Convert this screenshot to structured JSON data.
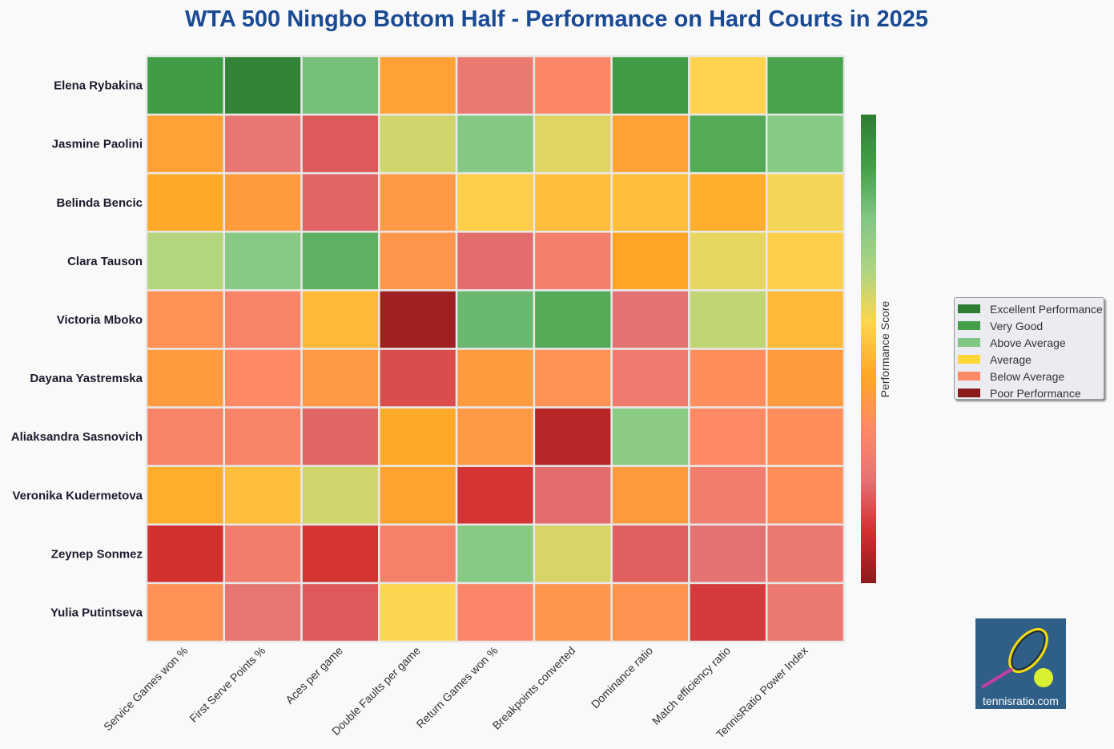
{
  "chart_data": {
    "type": "heatmap",
    "title": "WTA 500 Ningbo Bottom Half - Performance on Hard Courts in 2025",
    "rows": [
      "Elena Rybakina",
      "Jasmine Paolini",
      "Belinda Bencic",
      "Clara Tauson",
      "Victoria Mboko",
      "Dayana Yastremska",
      "Aliaksandra Sasnovich",
      "Veronika Kudermetova",
      "Zeynep Sonmez",
      "Yulia Putintseva"
    ],
    "columns": [
      "Service Games won %",
      "First Serve Points %",
      "Aces per game",
      "Double Faults per game",
      "Return Games won %",
      "Breakpoints converted",
      "Dominance ratio",
      "Match efficiency ratio",
      "TennisRatio Power Index"
    ],
    "values": [
      [
        0.9,
        0.98,
        0.8,
        0.42,
        0.25,
        0.32,
        0.9,
        0.55,
        0.88
      ],
      [
        0.42,
        0.24,
        0.18,
        0.62,
        0.77,
        0.6,
        0.42,
        0.86,
        0.76
      ],
      [
        0.45,
        0.4,
        0.2,
        0.39,
        0.54,
        0.5,
        0.5,
        0.46,
        0.57
      ],
      [
        0.66,
        0.76,
        0.84,
        0.38,
        0.21,
        0.28,
        0.44,
        0.59,
        0.54
      ],
      [
        0.36,
        0.3,
        0.49,
        0.03,
        0.82,
        0.86,
        0.22,
        0.64,
        0.49
      ],
      [
        0.4,
        0.33,
        0.39,
        0.16,
        0.4,
        0.36,
        0.26,
        0.35,
        0.4
      ],
      [
        0.3,
        0.3,
        0.2,
        0.45,
        0.39,
        0.07,
        0.75,
        0.33,
        0.35
      ],
      [
        0.46,
        0.5,
        0.62,
        0.43,
        0.12,
        0.21,
        0.4,
        0.27,
        0.35
      ],
      [
        0.11,
        0.27,
        0.12,
        0.29,
        0.76,
        0.61,
        0.19,
        0.22,
        0.25
      ],
      [
        0.36,
        0.23,
        0.18,
        0.56,
        0.31,
        0.38,
        0.37,
        0.13,
        0.25
      ]
    ],
    "vmin": 0,
    "vmax": 1,
    "colorbar_label": "Performance Score",
    "legend": [
      {
        "label": "Excellent Performance",
        "color": "#2e7d32"
      },
      {
        "label": "Very Good",
        "color": "#43a047"
      },
      {
        "label": "Above Average",
        "color": "#81c784"
      },
      {
        "label": "Average",
        "color": "#fdd835"
      },
      {
        "label": "Below Average",
        "color": "#ff8a65"
      },
      {
        "label": "Poor Performance",
        "color": "#8b1a1a"
      }
    ],
    "colorscale": [
      "#8b1a1a",
      "#d32f2f",
      "#e57373",
      "#ff8a65",
      "#ffa726",
      "#ffd54f",
      "#aed581",
      "#81c784",
      "#43a047",
      "#2e7d32"
    ],
    "cell_border_color": "#e8e8e8"
  },
  "watermark": {
    "text": "tennisratio.com",
    "icon": "tennis-racket-ball-icon"
  }
}
